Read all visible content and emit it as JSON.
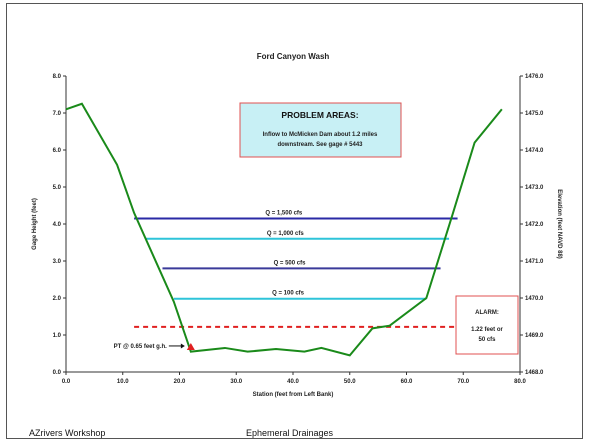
{
  "footer": {
    "left": "AZrivers Workshop",
    "center": "Ephemeral Drainages"
  },
  "chart_data": {
    "type": "line",
    "title": "Ford Canyon Wash",
    "xlabel": "Station (feet from Left Bank)",
    "ylabel": "Gage Height (feet)",
    "y2label": "Elevation (feet NAVD 88)",
    "xlim": [
      0,
      80
    ],
    "ylim": [
      0,
      8
    ],
    "y2lim": [
      1468,
      1476
    ],
    "x_ticks": [
      "0.0",
      "10.0",
      "20.0",
      "30.0",
      "40.0",
      "50.0",
      "60.0",
      "70.0",
      "80.0"
    ],
    "y_ticks": [
      "0.0",
      "1.0",
      "2.0",
      "3.0",
      "4.0",
      "5.0",
      "6.0",
      "7.0",
      "8.0"
    ],
    "y2_ticks": [
      "1468.0",
      "1469.0",
      "1470.0",
      "1471.0",
      "1472.0",
      "1473.0",
      "1474.0",
      "1475.0",
      "1476.0"
    ],
    "grid": false,
    "series": [
      {
        "color": "#1a8a1a",
        "x": [
          0,
          2.8,
          9,
          12,
          15.5,
          19,
          22,
          28,
          32,
          37,
          42,
          45,
          50,
          54,
          57,
          63.5,
          68,
          72,
          76.8
        ],
        "y": [
          7.1,
          7.25,
          5.6,
          4.3,
          3.1,
          1.9,
          0.55,
          0.65,
          0.55,
          0.62,
          0.55,
          0.65,
          0.45,
          1.18,
          1.25,
          2.0,
          4.2,
          6.2,
          7.1
        ]
      }
    ],
    "flow_lines": [
      {
        "label": "Q = 1,500 cfs",
        "y": 4.15,
        "x_start": 12,
        "x_end": 69,
        "color": "#2a2aa6"
      },
      {
        "label": "Q = 1,000 cfs",
        "y": 3.6,
        "x_start": 14,
        "x_end": 67.5,
        "color": "#2ec4d9"
      },
      {
        "label": "Q = 500 cfs",
        "y": 2.8,
        "x_start": 17,
        "x_end": 66,
        "color": "#3a3a9a"
      },
      {
        "label": "Q = 100 cfs",
        "y": 1.98,
        "x_start": 19,
        "x_end": 63.5,
        "color": "#2ec4d9"
      }
    ],
    "alarm_line": {
      "y": 1.22,
      "x_start": 12,
      "x_end": 69,
      "color": "#e02020"
    },
    "pt_marker": {
      "x": 22,
      "y": 0.65,
      "label": "PT @ 0.65 feet g.h.",
      "color": "#e02020"
    },
    "problem_box": {
      "title": "PROBLEM AREAS:",
      "lines": [
        "Inflow to McMicken Dam about 1.2 miles",
        "downstream. See gage # 5443"
      ],
      "fill": "#c8f0f5",
      "border": "#e05050"
    },
    "alarm_box": {
      "title": "ALARM:",
      "lines": [
        "1.22 feet or",
        "50 cfs"
      ],
      "border": "#e05050"
    }
  }
}
